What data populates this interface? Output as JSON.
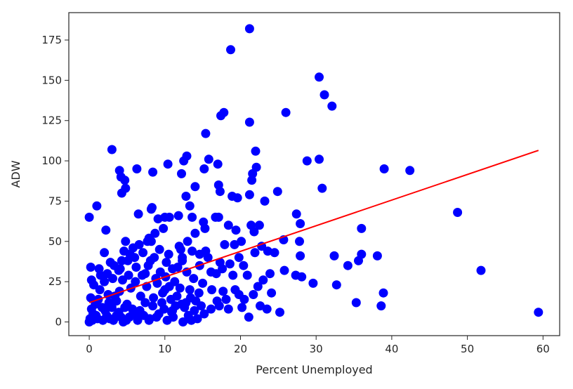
{
  "chart_data": {
    "type": "scatter",
    "xlabel": "Percent Unemployed",
    "ylabel": "ADW",
    "xlim": [
      -2.7,
      62.2
    ],
    "ylim": [
      -8.5,
      192
    ],
    "xticks": [
      0,
      10,
      20,
      30,
      40,
      50,
      60
    ],
    "yticks": [
      0,
      25,
      50,
      75,
      100,
      125,
      150,
      175
    ],
    "grid": false,
    "legend": "none",
    "point_color": "#0000ff",
    "line_color": "#ff0000",
    "trend_line": {
      "x": [
        0,
        59.4
      ],
      "y": [
        12,
        106.5
      ]
    },
    "points": [
      [
        21.2,
        182
      ],
      [
        18.7,
        169
      ],
      [
        30.4,
        152
      ],
      [
        31.1,
        141
      ],
      [
        32.1,
        134
      ],
      [
        17.8,
        130
      ],
      [
        17.4,
        128
      ],
      [
        26.0,
        130
      ],
      [
        21.2,
        124
      ],
      [
        15.4,
        117
      ],
      [
        3.0,
        107
      ],
      [
        22.0,
        106
      ],
      [
        12.9,
        103
      ],
      [
        12.5,
        100
      ],
      [
        15.8,
        101
      ],
      [
        17.0,
        98
      ],
      [
        21.6,
        92
      ],
      [
        22.1,
        96
      ],
      [
        21.5,
        88
      ],
      [
        28.8,
        100
      ],
      [
        30.4,
        101
      ],
      [
        10.4,
        98
      ],
      [
        6.3,
        95
      ],
      [
        4.0,
        94
      ],
      [
        4.2,
        90
      ],
      [
        4.7,
        88
      ],
      [
        12.2,
        92
      ],
      [
        15.2,
        95
      ],
      [
        8.4,
        93
      ],
      [
        39.0,
        95
      ],
      [
        42.4,
        94
      ],
      [
        14.0,
        84
      ],
      [
        17.1,
        85
      ],
      [
        17.3,
        81
      ],
      [
        21.2,
        79
      ],
      [
        18.9,
        78
      ],
      [
        19.6,
        77
      ],
      [
        24.9,
        81
      ],
      [
        30.8,
        83
      ],
      [
        4.3,
        80
      ],
      [
        4.8,
        83
      ],
      [
        12.8,
        78
      ],
      [
        13.3,
        72
      ],
      [
        13.6,
        65
      ],
      [
        11.8,
        66
      ],
      [
        10.6,
        65
      ],
      [
        10.0,
        65
      ],
      [
        9.1,
        64
      ],
      [
        8.2,
        70
      ],
      [
        8.3,
        71
      ],
      [
        6.5,
        67
      ],
      [
        1.0,
        72
      ],
      [
        0.0,
        65
      ],
      [
        2.2,
        57
      ],
      [
        16.7,
        65
      ],
      [
        17.1,
        65
      ],
      [
        18.4,
        60
      ],
      [
        19.4,
        57
      ],
      [
        21.4,
        60
      ],
      [
        22.5,
        60
      ],
      [
        21.8,
        56
      ],
      [
        23.2,
        75
      ],
      [
        27.4,
        67
      ],
      [
        27.9,
        61
      ],
      [
        36.0,
        58
      ],
      [
        48.7,
        68
      ],
      [
        7.9,
        52
      ],
      [
        8.2,
        50
      ],
      [
        4.8,
        50
      ],
      [
        5.8,
        46
      ],
      [
        4.6,
        44
      ],
      [
        2.0,
        43
      ],
      [
        10.5,
        42
      ],
      [
        11.9,
        47
      ],
      [
        12.3,
        40
      ],
      [
        13.6,
        44
      ],
      [
        14.6,
        42
      ],
      [
        15.4,
        44
      ],
      [
        15.3,
        58
      ],
      [
        17.9,
        48
      ],
      [
        19.2,
        48
      ],
      [
        20.1,
        50
      ],
      [
        23.6,
        44
      ],
      [
        24.5,
        43
      ],
      [
        25.7,
        51
      ],
      [
        27.8,
        50
      ],
      [
        27.9,
        41
      ],
      [
        32.4,
        41
      ],
      [
        34.2,
        35
      ],
      [
        35.6,
        38
      ],
      [
        36.0,
        42
      ],
      [
        38.1,
        41
      ],
      [
        51.8,
        32
      ],
      [
        25.8,
        32
      ],
      [
        27.3,
        29
      ],
      [
        28.1,
        28
      ],
      [
        29.6,
        24
      ],
      [
        32.7,
        23
      ],
      [
        35.3,
        12
      ],
      [
        38.6,
        10
      ],
      [
        38.9,
        18
      ],
      [
        25.2,
        6
      ],
      [
        59.4,
        6
      ],
      [
        21.1,
        3
      ],
      [
        20.2,
        9
      ],
      [
        19.8,
        17
      ],
      [
        22.3,
        22
      ],
      [
        23.0,
        26
      ],
      [
        20.9,
        29
      ],
      [
        19.0,
        29
      ],
      [
        17.3,
        37
      ],
      [
        16.1,
        31
      ],
      [
        16.2,
        20
      ],
      [
        16.9,
        13
      ],
      [
        17.7,
        19
      ],
      [
        18.4,
        8
      ],
      [
        14.5,
        18
      ],
      [
        13.4,
        15
      ],
      [
        12.2,
        11
      ],
      [
        11.0,
        7
      ],
      [
        10.0,
        20
      ],
      [
        9.0,
        24
      ],
      [
        8.5,
        15
      ],
      [
        7.4,
        12
      ],
      [
        6.7,
        7
      ],
      [
        5.8,
        5
      ],
      [
        4.7,
        9
      ],
      [
        3.6,
        13
      ],
      [
        2.5,
        17
      ],
      [
        1.4,
        20
      ],
      [
        0.6,
        23
      ],
      [
        0.2,
        34
      ],
      [
        1.5,
        29
      ],
      [
        2.8,
        37
      ],
      [
        3.9,
        32
      ],
      [
        4.4,
        26
      ],
      [
        5.1,
        38
      ],
      [
        6.2,
        34
      ],
      [
        7.0,
        29
      ],
      [
        7.8,
        35
      ],
      [
        8.6,
        40
      ],
      [
        9.4,
        31
      ],
      [
        10.1,
        28
      ],
      [
        11.3,
        25
      ],
      [
        12.0,
        21
      ],
      [
        12.9,
        31
      ],
      [
        13.8,
        27
      ],
      [
        15.0,
        24
      ],
      [
        0.5,
        5
      ],
      [
        1.1,
        2
      ],
      [
        2.3,
        4
      ],
      [
        3.2,
        1
      ],
      [
        3.9,
        6
      ],
      [
        4.5,
        0
      ],
      [
        5.3,
        3
      ],
      [
        6.4,
        1
      ],
      [
        7.2,
        4
      ],
      [
        8.0,
        2
      ],
      [
        9.2,
        5
      ],
      [
        10.3,
        1
      ],
      [
        11.1,
        3
      ],
      [
        12.4,
        0
      ],
      [
        13.1,
        4
      ],
      [
        14.3,
        2
      ],
      [
        15.2,
        5
      ],
      [
        0.0,
        0
      ],
      [
        0.1,
        2
      ],
      [
        0.3,
        8
      ],
      [
        0.8,
        11
      ],
      [
        1.7,
        9
      ],
      [
        2.6,
        12
      ],
      [
        3.4,
        16
      ],
      [
        4.0,
        19
      ],
      [
        5.5,
        21
      ],
      [
        6.1,
        25
      ],
      [
        7.6,
        22
      ],
      [
        8.8,
        27
      ],
      [
        9.7,
        18
      ],
      [
        10.8,
        14
      ],
      [
        11.6,
        16
      ],
      [
        12.6,
        9
      ],
      [
        13.9,
        7
      ],
      [
        14.8,
        10
      ],
      [
        0.2,
        15
      ],
      [
        1.2,
        14
      ],
      [
        2.1,
        7
      ],
      [
        3.0,
        9
      ],
      [
        4.2,
        3
      ],
      [
        5.0,
        11
      ],
      [
        6.8,
        16
      ],
      [
        7.4,
        30
      ],
      [
        8.4,
        10
      ],
      [
        9.9,
        8
      ],
      [
        10.6,
        22
      ],
      [
        11.7,
        34
      ],
      [
        12.3,
        38
      ],
      [
        13.3,
        20
      ],
      [
        14.1,
        13
      ],
      [
        0.4,
        1
      ],
      [
        0.9,
        4
      ],
      [
        1.8,
        1
      ],
      [
        2.7,
        2
      ],
      [
        3.6,
        4
      ],
      [
        4.9,
        1
      ],
      [
        5.7,
        8
      ],
      [
        6.5,
        4
      ],
      [
        7.9,
        1
      ],
      [
        8.9,
        3
      ],
      [
        9.6,
        12
      ],
      [
        10.9,
        6
      ],
      [
        11.4,
        10
      ],
      [
        12.8,
        12
      ],
      [
        13.5,
        1
      ],
      [
        14.6,
        35
      ],
      [
        15.7,
        40
      ],
      [
        16.8,
        30
      ],
      [
        17.6,
        33
      ],
      [
        18.6,
        36
      ],
      [
        19.8,
        40
      ],
      [
        20.4,
        35
      ],
      [
        21.9,
        43
      ],
      [
        22.8,
        47
      ],
      [
        23.9,
        30
      ],
      [
        24.1,
        18
      ],
      [
        16.1,
        8
      ],
      [
        17.2,
        10
      ],
      [
        18.1,
        14
      ],
      [
        19.3,
        20
      ],
      [
        20.5,
        14
      ],
      [
        21.7,
        17
      ],
      [
        22.6,
        10
      ],
      [
        23.5,
        8
      ],
      [
        2.0,
        25
      ],
      [
        3.1,
        27
      ],
      [
        4.1,
        33
      ],
      [
        5.2,
        29
      ],
      [
        6.0,
        40
      ],
      [
        7.1,
        43
      ],
      [
        8.1,
        38
      ],
      [
        9.3,
        45
      ],
      [
        10.2,
        37
      ],
      [
        11.0,
        33
      ],
      [
        12.1,
        45
      ],
      [
        13.0,
        50
      ],
      [
        14.0,
        55
      ],
      [
        15.1,
        62
      ],
      [
        0.3,
        26
      ],
      [
        1.3,
        33
      ],
      [
        2.4,
        30
      ],
      [
        3.3,
        35
      ],
      [
        4.3,
        38
      ],
      [
        5.4,
        42
      ],
      [
        6.6,
        48
      ],
      [
        7.7,
        50
      ],
      [
        8.7,
        55
      ],
      [
        9.8,
        58
      ]
    ]
  }
}
